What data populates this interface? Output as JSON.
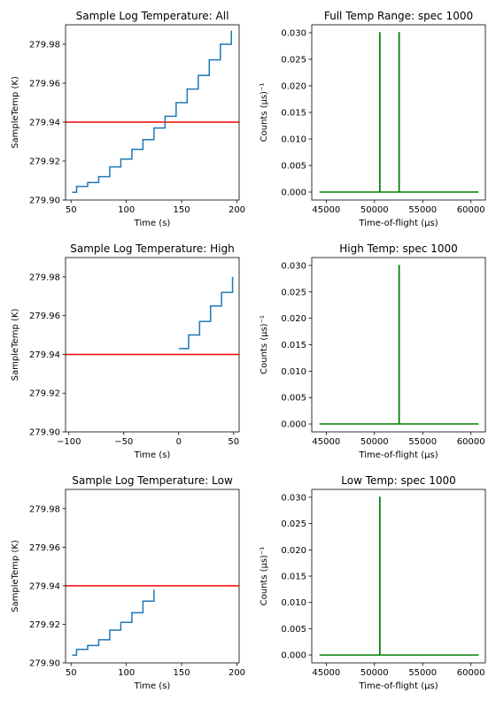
{
  "chart_data": [
    {
      "type": "line",
      "title": "Sample Log Temperature: All",
      "xlabel": "Time (s)",
      "ylabel": "SampleTemp (K)",
      "xlim": [
        45,
        202
      ],
      "ylim": [
        279.9,
        279.99
      ],
      "xticks": [
        50,
        100,
        150,
        200
      ],
      "xtick_labels": [
        "50",
        "100",
        "150",
        "200"
      ],
      "yticks": [
        279.9,
        279.92,
        279.94,
        279.96,
        279.98
      ],
      "ytick_labels": [
        "279.90",
        "279.92",
        "279.94",
        "279.96",
        "279.98"
      ],
      "grid": false,
      "series": [
        {
          "style": "step",
          "color": "#1f77b4",
          "x": [
            51,
            55,
            55,
            65,
            65,
            75,
            75,
            85,
            85,
            95,
            95,
            105,
            105,
            115,
            115,
            125,
            125,
            135,
            135,
            145,
            145,
            155,
            155,
            165,
            165,
            175,
            175,
            185,
            185,
            195,
            195
          ],
          "y": [
            279.904,
            279.904,
            279.907,
            279.907,
            279.909,
            279.909,
            279.912,
            279.912,
            279.917,
            279.917,
            279.921,
            279.921,
            279.926,
            279.926,
            279.931,
            279.931,
            279.937,
            279.937,
            279.943,
            279.943,
            279.95,
            279.95,
            279.957,
            279.957,
            279.964,
            279.964,
            279.972,
            279.972,
            279.98,
            279.98,
            279.987
          ]
        }
      ],
      "hlines": [
        {
          "y": 279.94,
          "color": "#ff0000"
        }
      ]
    },
    {
      "type": "line",
      "title": "Full Temp Range: spec 1000",
      "xlabel": "Time-of-flight (μs)",
      "ylabel": "Counts (μs)⁻¹",
      "xlim": [
        43500,
        61500
      ],
      "ylim": [
        -0.0015,
        0.0315
      ],
      "xticks": [
        45000,
        50000,
        55000,
        60000
      ],
      "xtick_labels": [
        "45000",
        "50000",
        "55000",
        "60000"
      ],
      "yticks": [
        0.0,
        0.005,
        0.01,
        0.015,
        0.02,
        0.025,
        0.03
      ],
      "ytick_labels": [
        "0.000",
        "0.005",
        "0.010",
        "0.015",
        "0.020",
        "0.025",
        "0.030"
      ],
      "grid": false,
      "series": [
        {
          "color": "#008000",
          "x": [
            44300,
            50550,
            50550,
            50570,
            50570,
            52550,
            52550,
            52570,
            52570,
            60800
          ],
          "y": [
            0,
            0,
            0.03,
            0.03,
            0,
            0,
            0.03,
            0.03,
            0,
            0
          ]
        }
      ]
    },
    {
      "type": "line",
      "title": "Sample Log Temperature: High",
      "xlabel": "Time (s)",
      "ylabel": "SampleTemp (K)",
      "xlim": [
        -103,
        55
      ],
      "ylim": [
        279.9,
        279.99
      ],
      "xticks": [
        -100,
        -50,
        0,
        50
      ],
      "xtick_labels": [
        "−100",
        "−50",
        "0",
        "50"
      ],
      "yticks": [
        279.9,
        279.92,
        279.94,
        279.96,
        279.98
      ],
      "ytick_labels": [
        "279.90",
        "279.92",
        "279.94",
        "279.96",
        "279.98"
      ],
      "grid": false,
      "series": [
        {
          "style": "step",
          "color": "#1f77b4",
          "x": [
            0,
            9,
            9,
            19,
            19,
            29,
            29,
            39,
            39,
            49,
            49
          ],
          "y": [
            279.943,
            279.943,
            279.95,
            279.95,
            279.957,
            279.957,
            279.965,
            279.965,
            279.972,
            279.972,
            279.98
          ]
        }
      ],
      "hlines": [
        {
          "y": 279.94,
          "color": "#ff0000"
        }
      ]
    },
    {
      "type": "line",
      "title": "High Temp: spec 1000",
      "xlabel": "Time-of-flight (μs)",
      "ylabel": "Counts (μs)⁻¹",
      "xlim": [
        43500,
        61500
      ],
      "ylim": [
        -0.0015,
        0.0315
      ],
      "xticks": [
        45000,
        50000,
        55000,
        60000
      ],
      "xtick_labels": [
        "45000",
        "50000",
        "55000",
        "60000"
      ],
      "yticks": [
        0.0,
        0.005,
        0.01,
        0.015,
        0.02,
        0.025,
        0.03
      ],
      "ytick_labels": [
        "0.000",
        "0.005",
        "0.010",
        "0.015",
        "0.020",
        "0.025",
        "0.030"
      ],
      "grid": false,
      "series": [
        {
          "color": "#008000",
          "x": [
            44300,
            52550,
            52550,
            52570,
            52570,
            60800
          ],
          "y": [
            0,
            0,
            0.03,
            0.03,
            0,
            0
          ]
        }
      ]
    },
    {
      "type": "line",
      "title": "Sample Log Temperature: Low",
      "xlabel": "Time (s)",
      "ylabel": "SampleTemp (K)",
      "xlim": [
        45,
        202
      ],
      "ylim": [
        279.9,
        279.99
      ],
      "xticks": [
        50,
        100,
        150,
        200
      ],
      "xtick_labels": [
        "50",
        "100",
        "150",
        "200"
      ],
      "yticks": [
        279.9,
        279.92,
        279.94,
        279.96,
        279.98
      ],
      "ytick_labels": [
        "279.90",
        "279.92",
        "279.94",
        "279.96",
        "279.98"
      ],
      "grid": false,
      "series": [
        {
          "style": "step",
          "color": "#1f77b4",
          "x": [
            51,
            55,
            55,
            65,
            65,
            75,
            75,
            85,
            85,
            95,
            95,
            105,
            105,
            115,
            115,
            125,
            125
          ],
          "y": [
            279.904,
            279.904,
            279.907,
            279.907,
            279.909,
            279.909,
            279.912,
            279.912,
            279.917,
            279.917,
            279.921,
            279.921,
            279.926,
            279.926,
            279.932,
            279.932,
            279.938
          ]
        }
      ],
      "hlines": [
        {
          "y": 279.94,
          "color": "#ff0000"
        }
      ]
    },
    {
      "type": "line",
      "title": "Low Temp: spec 1000",
      "xlabel": "Time-of-flight (μs)",
      "ylabel": "Counts (μs)⁻¹",
      "xlim": [
        43500,
        61500
      ],
      "ylim": [
        -0.0015,
        0.0315
      ],
      "xticks": [
        45000,
        50000,
        55000,
        60000
      ],
      "xtick_labels": [
        "45000",
        "50000",
        "55000",
        "60000"
      ],
      "yticks": [
        0.0,
        0.005,
        0.01,
        0.015,
        0.02,
        0.025,
        0.03
      ],
      "ytick_labels": [
        "0.000",
        "0.005",
        "0.010",
        "0.015",
        "0.020",
        "0.025",
        "0.030"
      ],
      "grid": false,
      "series": [
        {
          "color": "#008000",
          "x": [
            44300,
            50550,
            50550,
            50570,
            50570,
            60800
          ],
          "y": [
            0,
            0,
            0.03,
            0.03,
            0,
            0
          ]
        }
      ]
    }
  ]
}
